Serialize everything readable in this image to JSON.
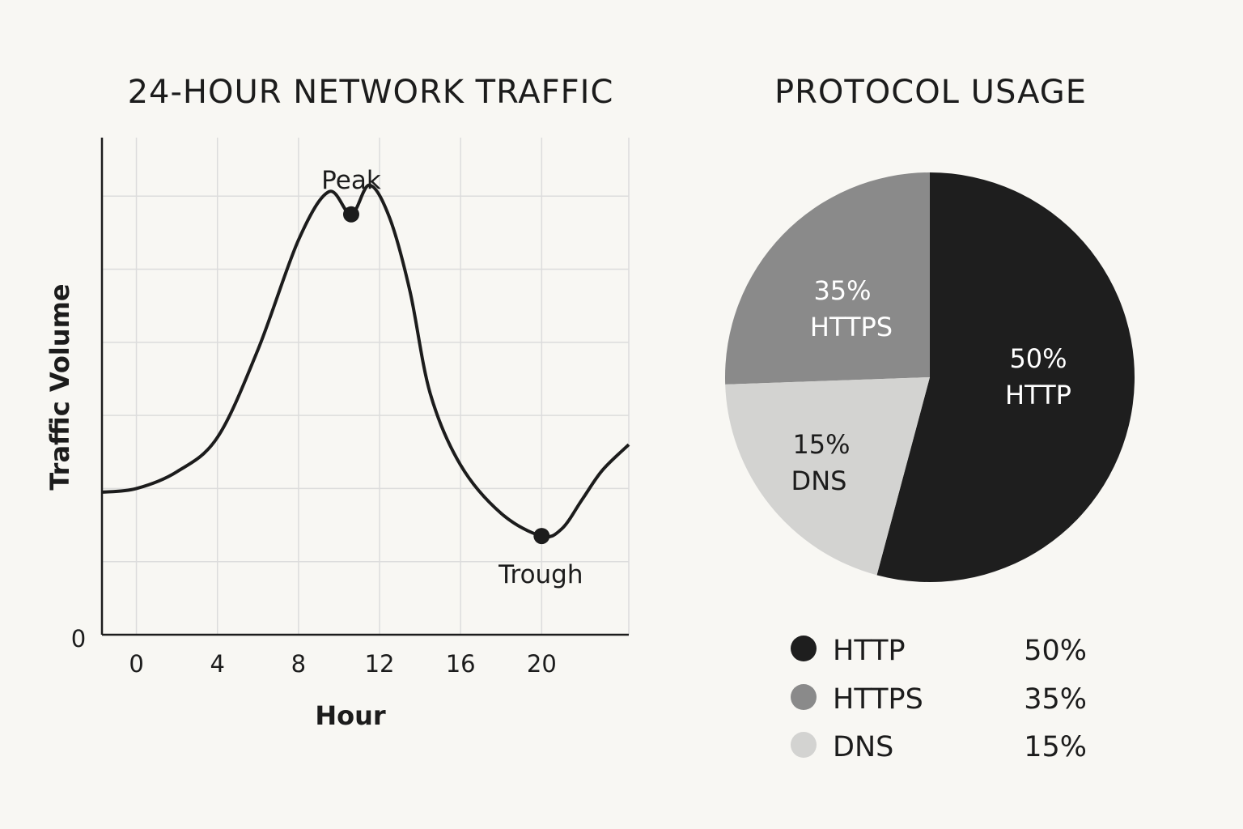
{
  "chart_data": [
    {
      "type": "line",
      "title": "24-HOUR NETWORK TRAFFIC",
      "xlabel": "Hour",
      "ylabel": "Traffic Volume",
      "x_ticks": [
        "0",
        "4",
        "8",
        "12",
        "16",
        "20"
      ],
      "x_tick_values": [
        0,
        4,
        8,
        12,
        16,
        20
      ],
      "y_tick_labels": [
        "0"
      ],
      "xlim": [
        -1.7,
        24.3
      ],
      "ylim": [
        0,
        68
      ],
      "grid": true,
      "series": [
        {
          "x": [
            -1.7,
            0,
            2,
            4,
            6,
            8,
            9.5,
            10.6,
            11.5,
            12.5,
            13.5,
            14.5,
            16,
            18,
            20,
            21,
            22,
            23,
            24.3
          ],
          "y": [
            19.5,
            20,
            22.3,
            27,
            39,
            54,
            60.6,
            57.5,
            61.5,
            57,
            47,
            33,
            23.2,
            16.6,
            13.5,
            14.5,
            18.5,
            22.5,
            26
          ]
        }
      ],
      "annotations": [
        {
          "label": "Peak",
          "x": 10.6,
          "y": 57.5
        },
        {
          "label": "Trough",
          "x": 20,
          "y": 13.5
        }
      ]
    },
    {
      "type": "pie",
      "title": "PROTOCOL USAGE",
      "slices": [
        {
          "label": "HTTP",
          "value": 50,
          "display": "50%",
          "color": "#1e1e1e",
          "text_color": "#ffffff"
        },
        {
          "label": "HTTPS",
          "value": 35,
          "display": "35%",
          "color": "#8a8a8a",
          "text_color": "#ffffff"
        },
        {
          "label": "DNS",
          "value": 15,
          "display": "15%",
          "color": "#d3d3d1",
          "text_color": "#1c1c1c"
        }
      ],
      "legend": "below"
    }
  ]
}
